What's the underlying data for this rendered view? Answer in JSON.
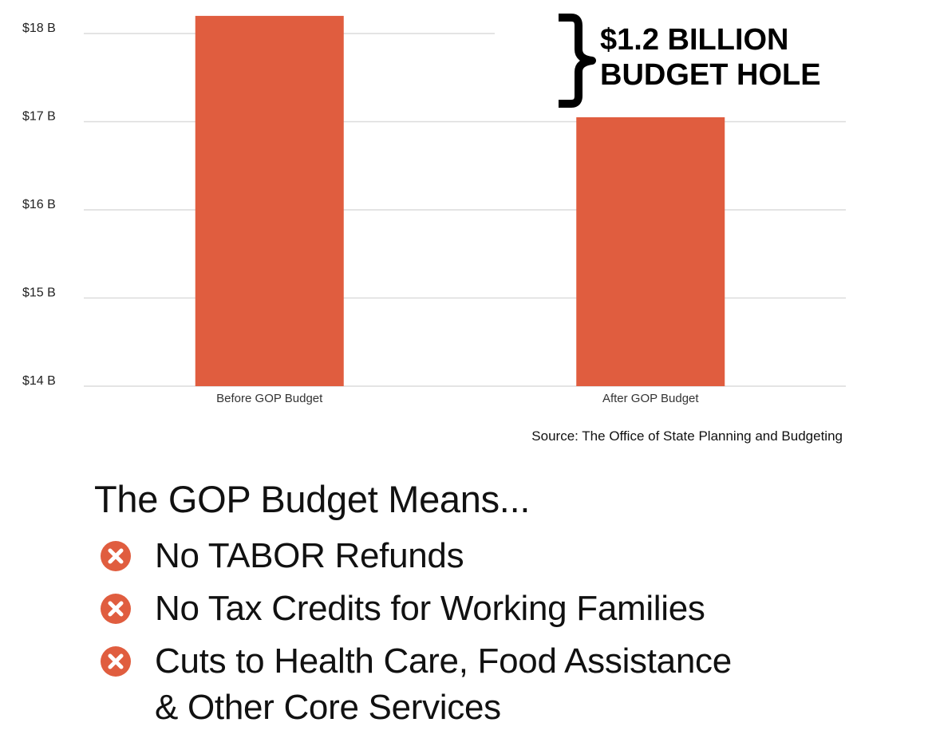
{
  "chart_data": {
    "type": "bar",
    "categories": [
      "Before GOP Budget",
      "After GOP Budget"
    ],
    "values": [
      18.2,
      17.05
    ],
    "ylim": [
      14,
      18.2
    ],
    "yticks": [
      18,
      17,
      16,
      15,
      14
    ],
    "ytick_labels": [
      "$18 B",
      "$17 B",
      "$16 B",
      "$15 B",
      "$14 B"
    ],
    "bar_color": "#e05d3f",
    "grid": true,
    "annotation": [
      "$1.2 BILLION",
      "BUDGET HOLE"
    ],
    "source": "Source: The Office of State Planning and Budgeting"
  },
  "means": {
    "title": "The GOP Budget Means...",
    "icon": "x-circle-icon",
    "icon_color": "#e05d3f",
    "items": [
      "No TABOR Refunds",
      "No Tax Credits for Working Families",
      "Cuts to Health Care, Food Assistance\n& Other Core Services"
    ]
  }
}
